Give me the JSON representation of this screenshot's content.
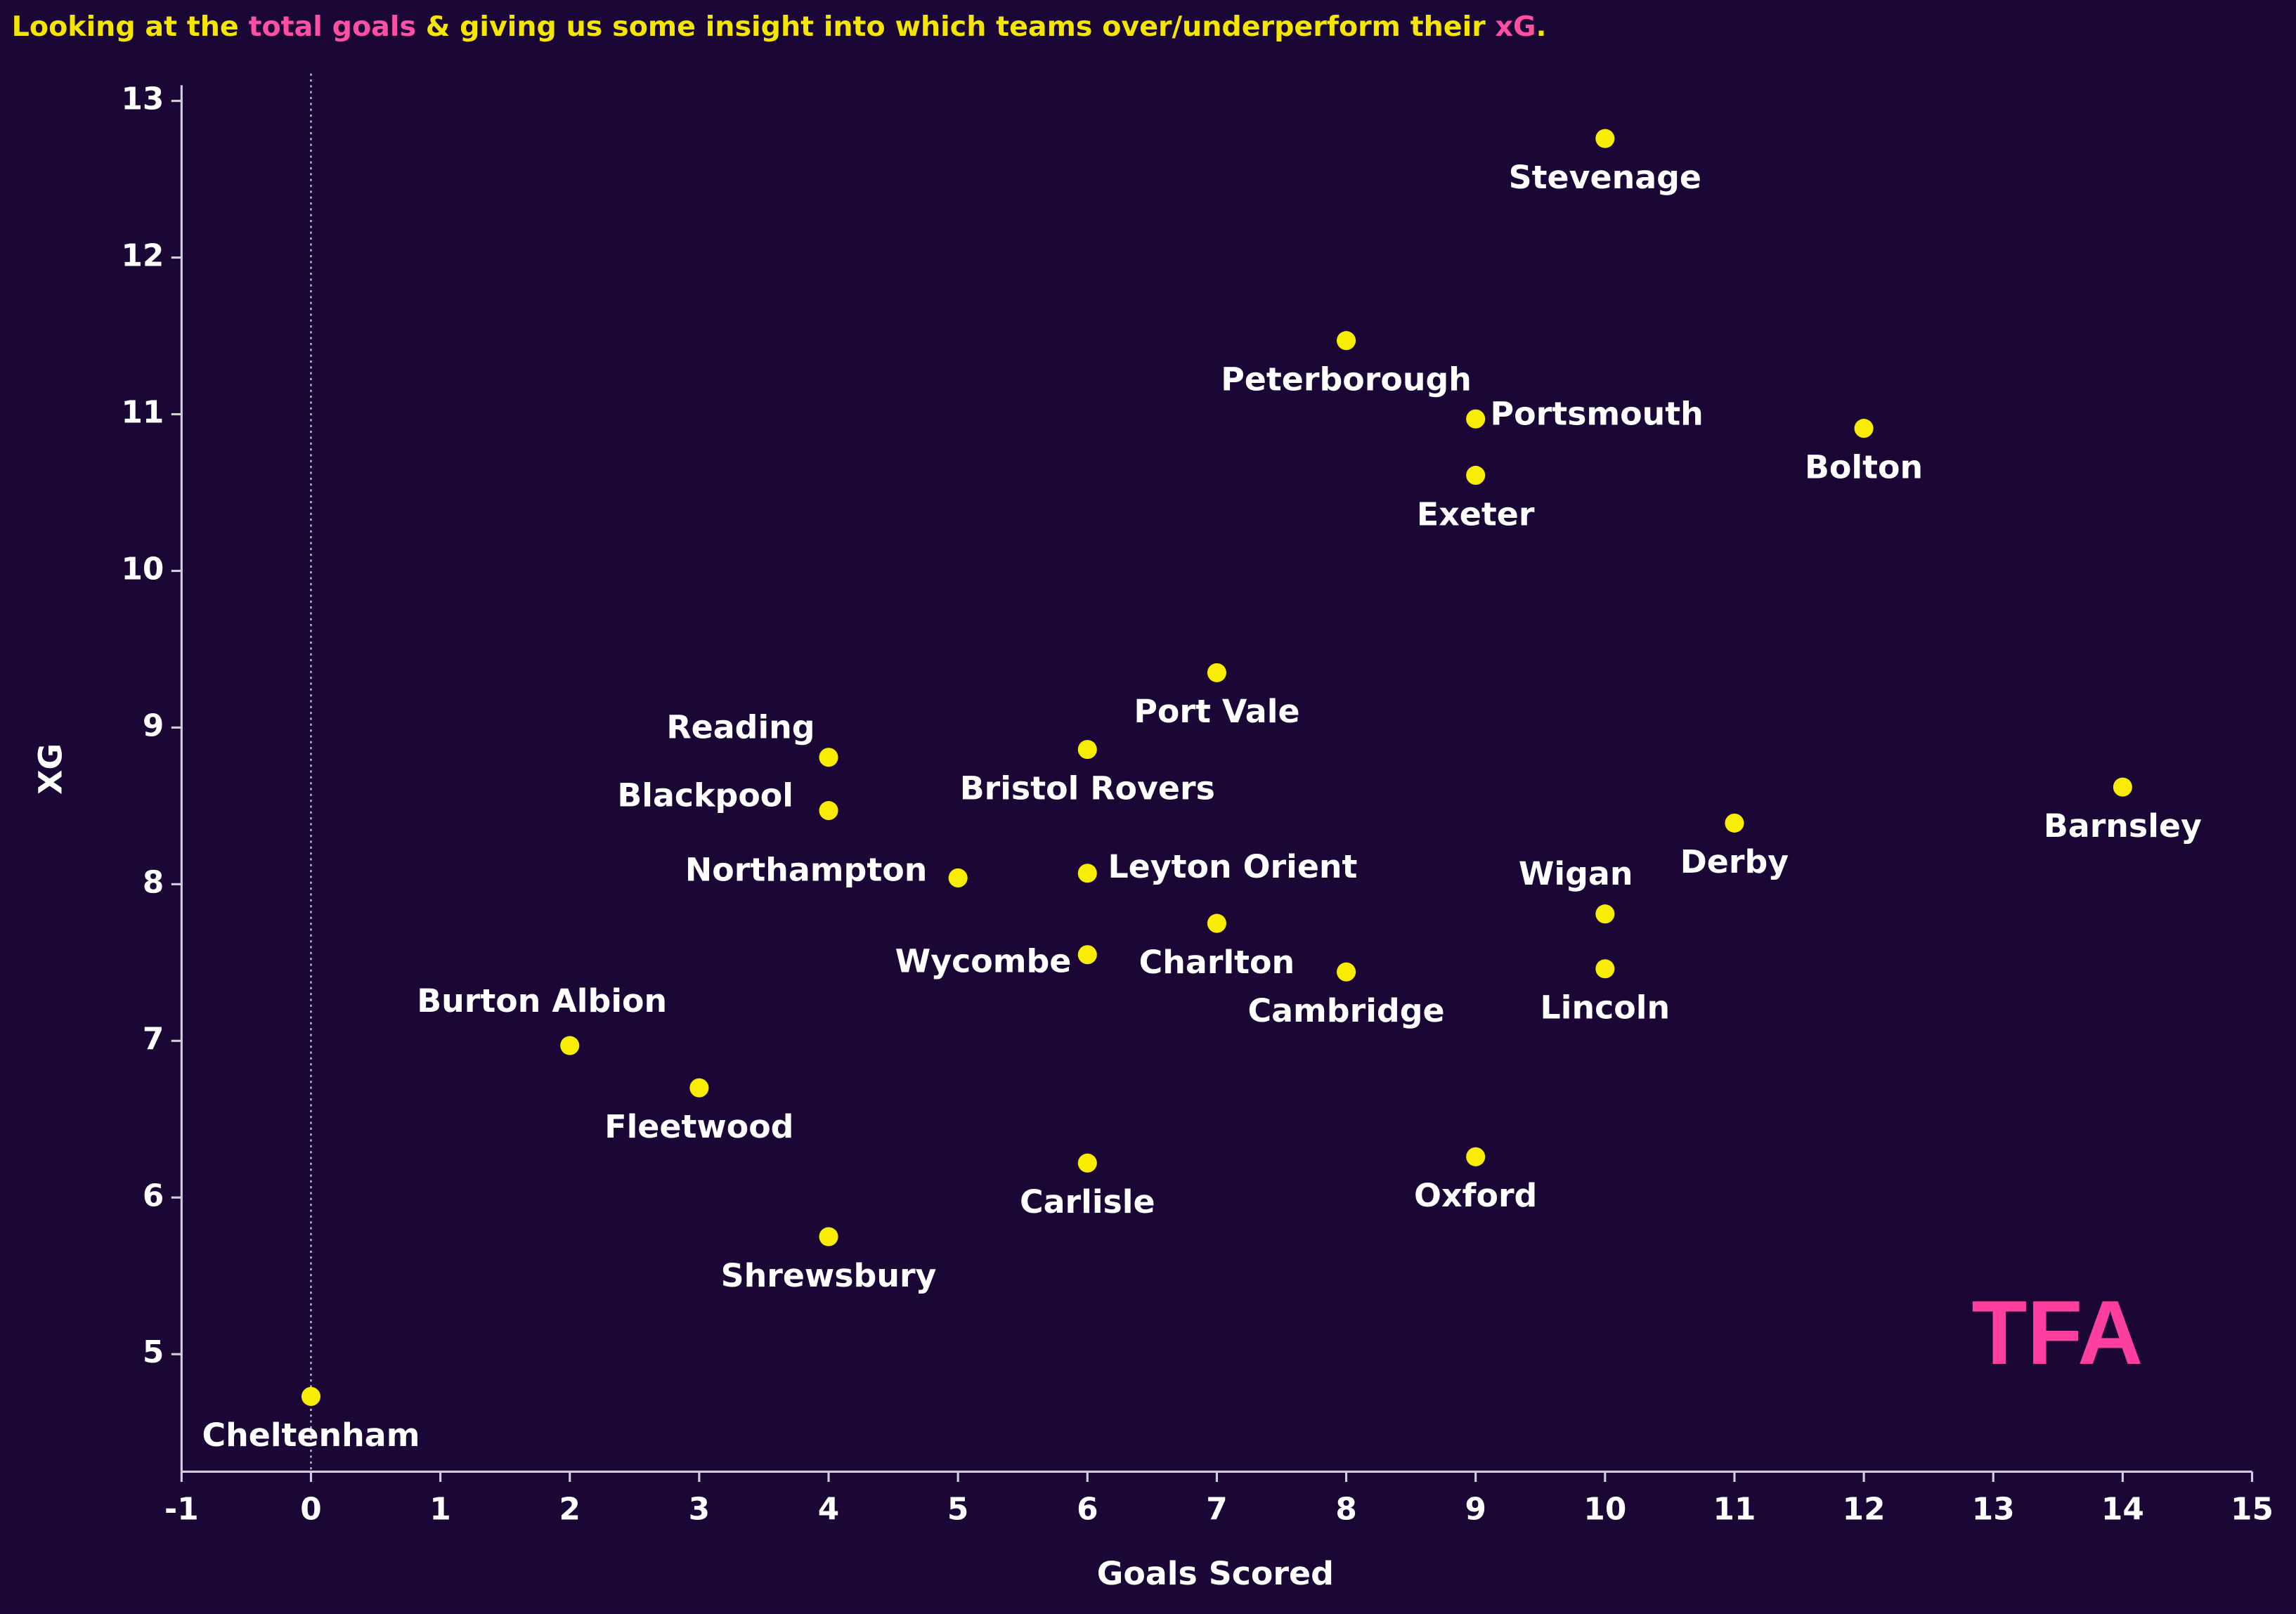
{
  "chart_data": {
    "type": "scatter",
    "title_parts": [
      {
        "text": "Looking at the ",
        "color": "#f5e600"
      },
      {
        "text": "total goals",
        "color": "#ff4fa3"
      },
      {
        "text": " & giving us some insight into which teams over/underperform their ",
        "color": "#f5e600"
      },
      {
        "text": "xG",
        "color": "#ff4fa3"
      },
      {
        "text": ".",
        "color": "#f5e600"
      }
    ],
    "x_label": "Goals Scored",
    "y_label": "XG",
    "logo": "TFA",
    "xlim": [
      -1,
      15
    ],
    "xticks": [
      -1,
      0,
      1,
      2,
      3,
      4,
      5,
      6,
      7,
      8,
      9,
      10,
      11,
      12,
      13,
      14,
      15
    ],
    "ylim": [
      4.25,
      13.1
    ],
    "yticks": [
      5,
      6,
      7,
      8,
      9,
      10,
      11,
      12,
      13
    ],
    "reference_x": 0,
    "color": "#f8ec00",
    "labels": [
      "Stevenage",
      "Peterborough",
      "Portsmouth",
      "Bolton",
      "Exeter",
      "Port Vale",
      "Reading",
      "Bristol Rovers",
      "Blackpool",
      "Barnsley",
      "Derby",
      "Northampton",
      "Leyton Orient",
      "Wigan",
      "Charlton",
      "Wycombe",
      "Lincoln",
      "Cambridge",
      "Burton Albion",
      "Fleetwood",
      "Oxford",
      "Carlisle",
      "Shrewsbury",
      "Cheltenham"
    ],
    "x": [
      10,
      8,
      9,
      12,
      9,
      7,
      4,
      6,
      4,
      14,
      11,
      5,
      6,
      10,
      7,
      6,
      10,
      8,
      2,
      3,
      9,
      6,
      4,
      0
    ],
    "y": [
      12.76,
      11.47,
      10.97,
      10.91,
      10.61,
      9.35,
      8.81,
      8.86,
      8.47,
      8.62,
      8.39,
      8.04,
      8.07,
      7.81,
      7.75,
      7.55,
      7.46,
      7.44,
      6.97,
      6.7,
      6.26,
      6.22,
      5.75,
      4.73
    ]
  }
}
